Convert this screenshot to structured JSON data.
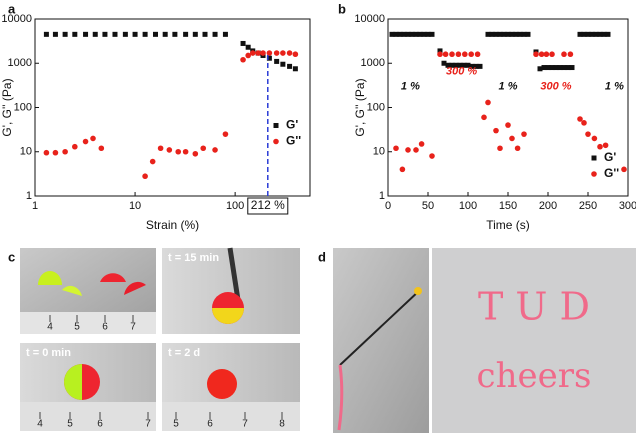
{
  "chart_data": [
    {
      "type": "scatter",
      "xlabel": "Strain (%)",
      "ylabel": "G', G'' (Pa)",
      "panel": "a",
      "xscale": "log",
      "yscale": "log",
      "xlim": [
        1,
        560
      ],
      "xticks": [
        1,
        10,
        100
      ],
      "ylim": [
        1,
        10000
      ],
      "yticks": [
        1,
        10,
        100,
        1000,
        10000
      ],
      "legend_position": "center right",
      "series": [
        {
          "name": "G'",
          "color": "#111111",
          "marker": "square",
          "x": [
            1.3,
            1.6,
            2,
            2.5,
            3.2,
            4,
            5,
            6.3,
            8,
            10,
            12.6,
            16,
            20,
            25,
            32,
            40,
            50,
            63,
            80,
            120,
            135,
            150,
            170,
            190,
            220,
            260,
            300,
            350,
            400
          ],
          "values": [
            4500,
            4500,
            4500,
            4500,
            4500,
            4500,
            4500,
            4500,
            4500,
            4500,
            4500,
            4500,
            4500,
            4500,
            4500,
            4500,
            4500,
            4500,
            4500,
            2800,
            2300,
            1900,
            1700,
            1500,
            1300,
            1100,
            950,
            850,
            750
          ]
        },
        {
          "name": "G''",
          "color": "#e8221b",
          "marker": "circle",
          "x": [
            1.3,
            1.6,
            2,
            2.5,
            3.2,
            3.8,
            4.6,
            12.6,
            15,
            18,
            22,
            27,
            32,
            40,
            48,
            63,
            80,
            120,
            135,
            150,
            170,
            190,
            220,
            260,
            300,
            350,
            400
          ],
          "values": [
            9.5,
            9.5,
            10,
            13,
            17,
            20,
            12,
            2.8,
            6,
            12,
            11,
            10,
            10,
            9,
            12,
            11,
            25,
            1200,
            1500,
            1700,
            1700,
            1700,
            1700,
            1700,
            1700,
            1700,
            1600
          ]
        }
      ],
      "annotations": [
        {
          "text": "212 %",
          "x": 212,
          "y": 1700
        }
      ]
    },
    {
      "type": "scatter",
      "xlabel": "Time (s)",
      "ylabel": "G', G'' (Pa)",
      "panel": "b",
      "xscale": "linear",
      "yscale": "log",
      "xlim": [
        0,
        300
      ],
      "xticks": [
        0,
        50,
        100,
        150,
        200,
        250,
        300
      ],
      "ylim": [
        1,
        10000
      ],
      "yticks": [
        1,
        10,
        100,
        1000,
        10000
      ],
      "legend_position": "lower right",
      "series": [
        {
          "name": "G'",
          "color": "#111111",
          "marker": "square",
          "x": [
            5,
            10,
            15,
            20,
            25,
            30,
            35,
            40,
            45,
            50,
            55,
            65,
            70,
            75,
            80,
            85,
            90,
            95,
            100,
            105,
            110,
            115,
            125,
            130,
            135,
            140,
            145,
            150,
            155,
            160,
            165,
            170,
            175,
            185,
            190,
            195,
            200,
            205,
            210,
            215,
            220,
            225,
            230,
            240,
            245,
            250,
            255,
            260,
            265,
            270,
            275
          ],
          "values": [
            4500,
            4500,
            4500,
            4500,
            4500,
            4500,
            4500,
            4500,
            4500,
            4500,
            4500,
            1900,
            1000,
            900,
            900,
            900,
            900,
            900,
            900,
            850,
            850,
            850,
            4500,
            4500,
            4500,
            4500,
            4500,
            4500,
            4500,
            4500,
            4500,
            4500,
            4500,
            1800,
            750,
            800,
            800,
            800,
            800,
            800,
            800,
            800,
            800,
            4500,
            4500,
            4500,
            4500,
            4500,
            4500,
            4500,
            4500
          ]
        },
        {
          "name": "G''",
          "color": "#e8221b",
          "marker": "circle",
          "x": [
            10,
            18,
            25,
            35,
            42,
            55,
            65,
            72,
            80,
            88,
            96,
            104,
            112,
            120,
            125,
            135,
            140,
            150,
            155,
            162,
            170,
            185,
            192,
            198,
            205,
            220,
            228,
            240,
            245,
            250,
            258,
            265,
            272,
            295
          ],
          "values": [
            12,
            4,
            11,
            11,
            15,
            8,
            1600,
            1600,
            1600,
            1600,
            1600,
            1600,
            1600,
            60,
            130,
            30,
            12,
            40,
            20,
            12,
            25,
            1600,
            1600,
            1600,
            1600,
            1600,
            1600,
            55,
            45,
            25,
            20,
            13,
            14,
            4
          ]
        }
      ],
      "annotations": [
        {
          "text": "1 %",
          "x": 28,
          "y": 300,
          "color": "#111111"
        },
        {
          "text": "300 %",
          "x": 92,
          "y": 650,
          "color": "#e8221b"
        },
        {
          "text": "1 %",
          "x": 150,
          "y": 300,
          "color": "#111111"
        },
        {
          "text": "300 %",
          "x": 210,
          "y": 300,
          "color": "#e8221b"
        },
        {
          "text": "1 %",
          "x": 283,
          "y": 300,
          "color": "#111111"
        }
      ]
    }
  ],
  "photos": {
    "c": {
      "label": "c",
      "captions": [
        "t = 15 min",
        "t = 0 min",
        "t = 2 d"
      ],
      "rulers": [
        [
          "4",
          "5",
          "6",
          "7"
        ],
        [
          "4",
          "5",
          "6",
          "7"
        ],
        [
          "5",
          "6",
          "7",
          "8"
        ]
      ]
    },
    "d": {
      "label": "d",
      "writing": [
        "T U D",
        "cheers"
      ]
    }
  }
}
